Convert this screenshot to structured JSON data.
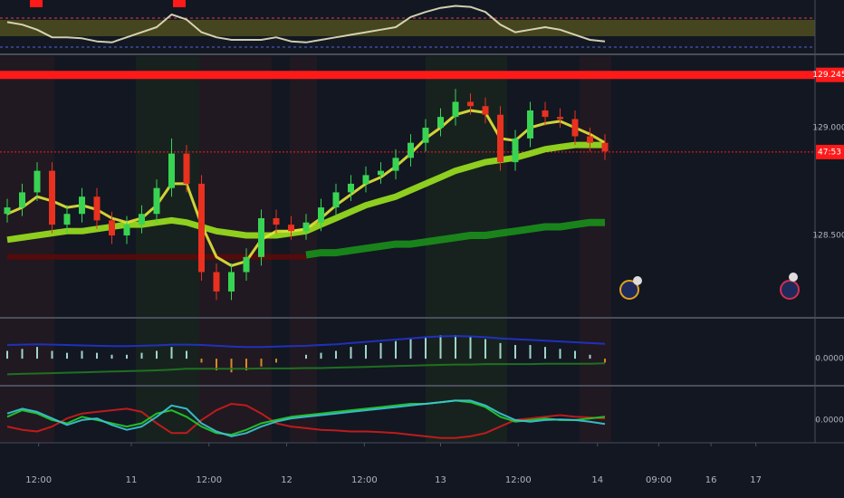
{
  "chart_data": [
    {
      "type": "line",
      "ylim": [
        0,
        100
      ],
      "series": [
        {
          "color": "#e6e2c0",
          "values": [
            60,
            55,
            45,
            30,
            30,
            28,
            22,
            20,
            30,
            40,
            50,
            75,
            65,
            40,
            30,
            25,
            25,
            25,
            30,
            22,
            20,
            25,
            30,
            35,
            40,
            45,
            50,
            70,
            80,
            88,
            92,
            90,
            80,
            55,
            40,
            45,
            50,
            45,
            35,
            25,
            22
          ]
        }
      ]
    },
    {
      "type": "candlestick",
      "x": [
        0,
        1,
        2,
        3,
        4,
        5,
        6,
        7,
        8,
        9,
        10,
        11,
        12,
        13,
        14,
        15,
        16,
        17,
        18,
        19,
        20,
        21,
        22,
        23,
        24,
        25,
        26,
        27,
        28,
        29,
        30,
        31,
        32,
        33,
        34,
        35,
        36,
        37,
        38,
        39,
        40
      ],
      "xlim": [
        -0.485,
        54.06
      ],
      "xticks": [
        {
          "value": 2.1,
          "label": "12:00"
        },
        {
          "value": 8.3,
          "label": "11"
        },
        {
          "value": 13.5,
          "label": "12:00"
        },
        {
          "value": 18.7,
          "label": "12"
        },
        {
          "value": 23.9,
          "label": "12:00"
        },
        {
          "value": 29,
          "label": "13"
        },
        {
          "value": 34.2,
          "label": "12:00"
        },
        {
          "value": 39.5,
          "label": "14"
        },
        {
          "value": 43.6,
          "label": "09:00"
        },
        {
          "value": 47.1,
          "label": "16"
        },
        {
          "value": 50.1,
          "label": "17"
        }
      ],
      "ylim": [
        128.122,
        129.332
      ],
      "yticks": [
        {
          "value": 129,
          "label": "129.000"
        },
        {
          "value": 128.5,
          "label": "128.500"
        }
      ],
      "up_color": "#39d353",
      "down_color": "#e8311f",
      "open": [
        128.6,
        128.63,
        128.7,
        128.8,
        128.55,
        128.6,
        128.68,
        128.57,
        128.5,
        128.55,
        128.6,
        128.72,
        128.88,
        128.74,
        128.33,
        128.24,
        128.33,
        128.4,
        128.58,
        128.55,
        128.52,
        128.56,
        128.63,
        128.7,
        128.74,
        128.78,
        128.8,
        128.86,
        128.93,
        129.0,
        129.05,
        129.12,
        129.1,
        129.06,
        128.84,
        128.95,
        129.08,
        129.05,
        129.04,
        128.96,
        128.93
      ],
      "high": [
        128.67,
        128.74,
        128.84,
        128.84,
        128.64,
        128.72,
        128.72,
        128.61,
        128.59,
        128.64,
        128.76,
        128.95,
        128.92,
        128.78,
        128.37,
        128.37,
        128.44,
        128.62,
        128.62,
        128.59,
        128.6,
        128.67,
        128.74,
        128.78,
        128.82,
        128.84,
        128.9,
        128.97,
        129.04,
        129.09,
        129.18,
        129.16,
        129.14,
        129.1,
        128.99,
        129.12,
        129.12,
        129.09,
        129.08,
        129.0,
        128.97
      ],
      "low": [
        128.56,
        128.59,
        128.66,
        128.51,
        128.51,
        128.56,
        128.53,
        128.46,
        128.46,
        128.51,
        128.56,
        128.68,
        128.7,
        128.29,
        128.2,
        128.2,
        128.29,
        128.36,
        128.51,
        128.48,
        128.48,
        128.52,
        128.59,
        128.66,
        128.7,
        128.74,
        128.76,
        128.82,
        128.89,
        128.96,
        129.01,
        129.06,
        129.02,
        128.8,
        128.8,
        128.91,
        129.01,
        129.0,
        128.92,
        128.89,
        128.85
      ],
      "close": [
        128.63,
        128.7,
        128.8,
        128.55,
        128.6,
        128.68,
        128.57,
        128.5,
        128.55,
        128.6,
        128.72,
        128.88,
        128.74,
        128.33,
        128.24,
        128.33,
        128.4,
        128.58,
        128.55,
        128.52,
        128.56,
        128.63,
        128.7,
        128.74,
        128.78,
        128.8,
        128.86,
        128.93,
        129.0,
        129.05,
        129.12,
        129.1,
        129.06,
        128.84,
        128.95,
        129.08,
        129.05,
        129.04,
        128.96,
        128.93,
        128.89
      ],
      "series": [
        {
          "color": "#5a0a0a",
          "values": [
            128.4,
            128.4,
            128.4,
            128.4,
            128.4,
            128.4,
            128.4,
            128.4,
            128.4,
            128.4,
            128.4,
            128.4,
            128.4,
            128.4,
            128.4,
            128.4,
            128.4,
            128.4,
            128.4,
            128.4,
            128.4,
            null,
            null,
            null,
            null,
            null,
            null,
            null,
            null,
            null,
            null,
            null,
            null,
            null,
            null,
            null,
            null,
            null,
            null,
            null,
            null
          ]
        },
        {
          "color": "#1b8f1b",
          "values": [
            null,
            null,
            null,
            null,
            null,
            null,
            null,
            null,
            null,
            null,
            null,
            null,
            null,
            null,
            null,
            null,
            null,
            null,
            null,
            null,
            128.41,
            128.42,
            128.42,
            128.43,
            128.44,
            128.45,
            128.46,
            128.46,
            128.47,
            128.48,
            128.49,
            128.5,
            128.5,
            128.51,
            128.52,
            128.53,
            128.54,
            128.54,
            128.55,
            128.56,
            128.56
          ]
        },
        {
          "color": "#9be21f",
          "values": [
            128.48,
            128.49,
            128.5,
            128.51,
            128.52,
            128.52,
            128.53,
            128.54,
            128.55,
            128.55,
            128.56,
            128.57,
            128.56,
            128.54,
            128.52,
            128.51,
            128.5,
            128.5,
            128.5,
            128.51,
            128.52,
            128.55,
            128.58,
            128.61,
            128.64,
            128.66,
            128.68,
            128.71,
            128.74,
            128.77,
            128.8,
            128.82,
            128.84,
            128.85,
            128.86,
            128.88,
            128.9,
            128.91,
            128.92,
            128.92,
            128.92
          ]
        },
        {
          "color": "#e6e63a",
          "values": [
            128.6,
            128.63,
            128.68,
            128.66,
            128.63,
            128.64,
            128.62,
            128.58,
            128.56,
            128.58,
            128.64,
            128.74,
            128.74,
            128.55,
            128.4,
            128.36,
            128.38,
            128.48,
            128.52,
            128.52,
            128.53,
            128.58,
            128.64,
            128.69,
            128.74,
            128.77,
            128.82,
            128.88,
            128.95,
            129.0,
            129.06,
            129.08,
            129.07,
            128.95,
            128.94,
            129.0,
            129.02,
            129.03,
            129.0,
            128.97,
            128.93
          ]
        }
      ],
      "price_lines": [
        {
          "value": 129.245,
          "label": "129.245",
          "color": "#ff1a1a"
        },
        {
          "value": 128.887,
          "label": "47:53",
          "color": "#ff1a1a"
        }
      ]
    },
    {
      "type": "bar",
      "ylim": [
        -0.067,
        0.1
      ],
      "yticks": [
        {
          "value": 0,
          "label": "0.0000"
        }
      ],
      "color": "#9fd6c8",
      "values": [
        0.02,
        0.025,
        0.03,
        0.02,
        0.015,
        0.02,
        0.015,
        0.01,
        0.01,
        0.015,
        0.02,
        0.03,
        0.02,
        -0.01,
        -0.03,
        -0.035,
        -0.03,
        -0.02,
        -0.01,
        0,
        0.01,
        0.015,
        0.02,
        0.03,
        0.035,
        0.04,
        0.045,
        0.05,
        0.055,
        0.06,
        0.06,
        0.055,
        0.05,
        0.04,
        0.035,
        0.035,
        0.03,
        0.025,
        0.02,
        0.01,
        -0.01
      ],
      "series": [
        {
          "color": "#2233cc",
          "values": [
            0.035,
            0.036,
            0.037,
            0.036,
            0.035,
            0.034,
            0.033,
            0.032,
            0.032,
            0.033,
            0.034,
            0.036,
            0.036,
            0.035,
            0.033,
            0.031,
            0.03,
            0.03,
            0.031,
            0.032,
            0.033,
            0.035,
            0.037,
            0.04,
            0.043,
            0.046,
            0.049,
            0.052,
            0.055,
            0.057,
            0.058,
            0.057,
            0.055,
            0.052,
            0.05,
            0.048,
            0.046,
            0.044,
            0.042,
            0.04,
            0.038
          ]
        },
        {
          "color": "#1f7a1f",
          "values": [
            -0.04,
            -0.039,
            -0.038,
            -0.037,
            -0.036,
            -0.035,
            -0.034,
            -0.033,
            -0.032,
            -0.031,
            -0.03,
            -0.028,
            -0.026,
            -0.026,
            -0.026,
            -0.026,
            -0.026,
            -0.025,
            -0.025,
            -0.025,
            -0.024,
            -0.024,
            -0.023,
            -0.022,
            -0.021,
            -0.02,
            -0.019,
            -0.018,
            -0.017,
            -0.016,
            -0.015,
            -0.015,
            -0.014,
            -0.014,
            -0.014,
            -0.014,
            -0.013,
            -0.013,
            -0.013,
            -0.013,
            -0.012
          ]
        }
      ]
    },
    {
      "type": "line",
      "ylim": [
        -0.067,
        0.1
      ],
      "yticks": [
        {
          "value": 0,
          "label": "0.0000"
        }
      ],
      "series": [
        {
          "color": "#d01c1c",
          "values": [
            -0.02,
            -0.03,
            -0.035,
            -0.02,
            0.005,
            0.02,
            0.025,
            0.03,
            0.035,
            0.025,
            -0.01,
            -0.04,
            -0.04,
            0,
            0.03,
            0.05,
            0.045,
            0.02,
            -0.01,
            -0.02,
            -0.025,
            -0.03,
            -0.032,
            -0.035,
            -0.035,
            -0.037,
            -0.04,
            -0.045,
            -0.05,
            -0.055,
            -0.055,
            -0.05,
            -0.04,
            -0.02,
            0,
            0.005,
            0.01,
            0.015,
            0.01,
            0.008,
            0.005
          ]
        },
        {
          "color": "#22d02a",
          "values": [
            0.01,
            0.03,
            0.02,
            0,
            -0.01,
            0.01,
            0,
            -0.01,
            -0.02,
            -0.01,
            0.02,
            0.03,
            0.01,
            -0.02,
            -0.04,
            -0.045,
            -0.03,
            -0.01,
            0,
            0.01,
            0.015,
            0.02,
            0.025,
            0.03,
            0.035,
            0.04,
            0.045,
            0.05,
            0.05,
            0.055,
            0.06,
            0.055,
            0.04,
            0.01,
            -0.005,
            0,
            0.005,
            0,
            0,
            0.005,
            0.01
          ]
        },
        {
          "color": "#3cc8d8",
          "values": [
            0.02,
            0.035,
            0.025,
            0.005,
            -0.015,
            0,
            0.005,
            -0.015,
            -0.03,
            -0.02,
            0.01,
            0.045,
            0.035,
            -0.01,
            -0.035,
            -0.05,
            -0.04,
            -0.02,
            -0.005,
            0.005,
            0.01,
            0.015,
            0.02,
            0.025,
            0.03,
            0.035,
            0.04,
            0.045,
            0.05,
            0.055,
            0.06,
            0.06,
            0.045,
            0.02,
            0,
            -0.005,
            0,
            0.002,
            0,
            -0.005,
            -0.012
          ]
        }
      ]
    }
  ]
}
